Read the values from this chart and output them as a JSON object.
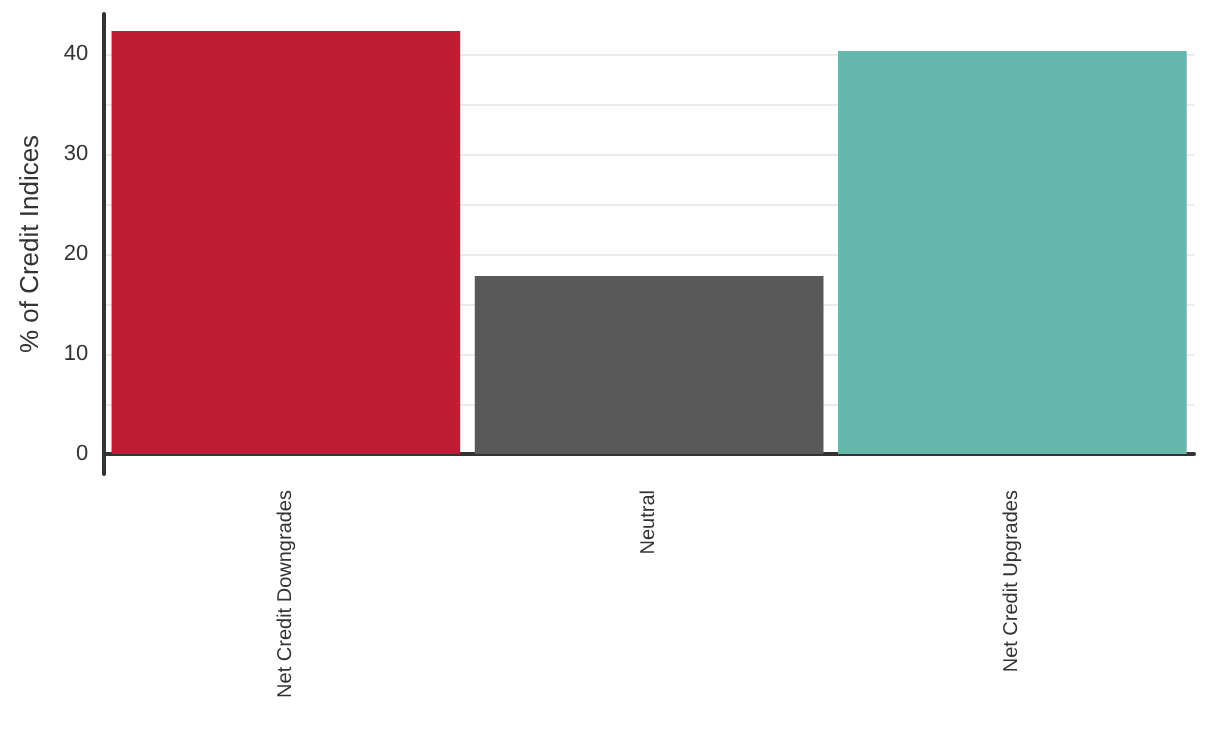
{
  "chart_data": {
    "type": "bar",
    "ylabel": "% of Credit Indices",
    "categories": [
      "Net Credit Downgrades",
      "Neutral",
      "Net Credit Upgrades"
    ],
    "values": [
      42.3,
      17.8,
      40.3
    ],
    "colors": [
      "#be1e35",
      "#595959",
      "#66b8ad"
    ],
    "ylim": [
      -2,
      44
    ],
    "yticks": [
      0,
      {
        "value": 5,
        "label": null
      },
      10,
      {
        "value": 15,
        "label": null
      },
      20,
      {
        "value": 25,
        "label": null
      },
      30,
      {
        "value": 35,
        "label": null
      },
      40
    ],
    "grid": "y"
  }
}
